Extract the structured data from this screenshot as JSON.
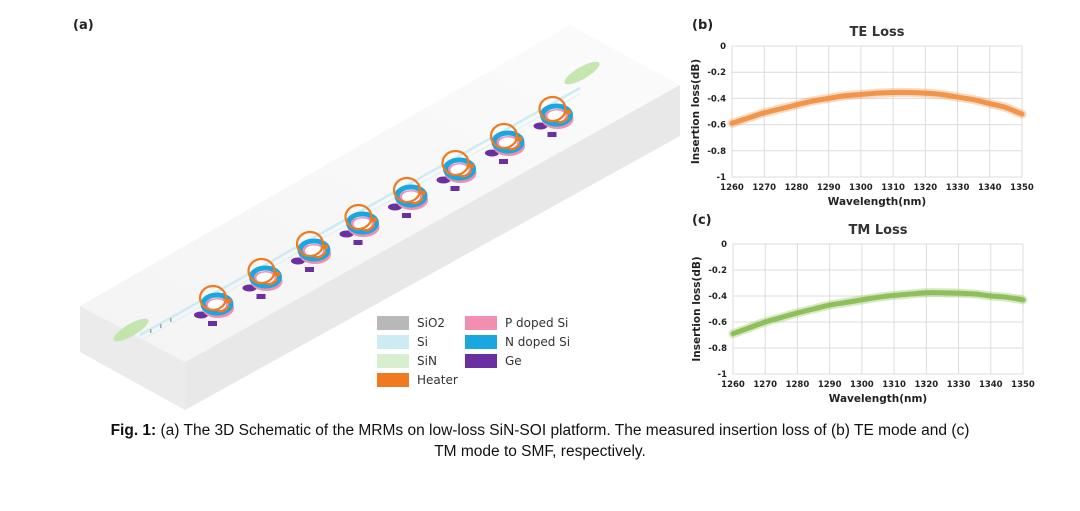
{
  "figure": {
    "panel_a_label": "(a)",
    "panel_b_label": "(b)",
    "panel_c_label": "(c)",
    "legend": [
      {
        "label": "SiO2",
        "color": "#b8b8b8"
      },
      {
        "label": "Si",
        "color": "#cdebf3"
      },
      {
        "label": "SiN",
        "color": "#d8efcf"
      },
      {
        "label": "Heater",
        "color": "#ef7a1f"
      },
      {
        "label": "P doped Si",
        "color": "#f28fb0"
      },
      {
        "label": "N doped Si",
        "color": "#1aa7e0"
      },
      {
        "label": "Ge",
        "color": "#6a2fa0"
      }
    ],
    "ring_count": 8,
    "caption_prefix": "Fig. 1:",
    "caption_line1": " (a) The 3D Schematic of the MRMs on low-loss SiN-SOI platform. The measured insertion loss of (b) TE mode and (c)",
    "caption_line2": "TM mode to SMF, respectively."
  },
  "chart_data": [
    {
      "type": "line",
      "title": "TE Loss",
      "xlabel": "Wavelength(nm)",
      "ylabel": "Insertion loss(dB)",
      "x": [
        1260,
        1265,
        1270,
        1275,
        1280,
        1285,
        1290,
        1295,
        1300,
        1305,
        1310,
        1315,
        1320,
        1325,
        1330,
        1335,
        1340,
        1345,
        1350
      ],
      "series": [
        {
          "name": "TE",
          "color": "#f0954a",
          "values": [
            -0.59,
            -0.55,
            -0.51,
            -0.48,
            -0.45,
            -0.42,
            -0.4,
            -0.38,
            -0.37,
            -0.36,
            -0.355,
            -0.355,
            -0.36,
            -0.37,
            -0.39,
            -0.41,
            -0.44,
            -0.47,
            -0.52
          ]
        }
      ],
      "xlim": [
        1260,
        1350
      ],
      "ylim": [
        -1,
        0
      ],
      "xticks": [
        "1260",
        "1270",
        "1280",
        "1290",
        "1300",
        "1310",
        "1320",
        "1330",
        "1340",
        "1350"
      ],
      "yticks": [
        "0",
        "-0.2",
        "-0.4",
        "-0.6",
        "-0.8",
        "-1"
      ],
      "grid": true
    },
    {
      "type": "line",
      "title": "TM Loss",
      "xlabel": "Wavelength(nm)",
      "ylabel": "Insertion loss(dB)",
      "x": [
        1260,
        1265,
        1270,
        1275,
        1280,
        1285,
        1290,
        1295,
        1300,
        1305,
        1310,
        1315,
        1320,
        1325,
        1330,
        1335,
        1340,
        1345,
        1350
      ],
      "series": [
        {
          "name": "TM",
          "color": "#8fbf5a",
          "values": [
            -0.69,
            -0.645,
            -0.6,
            -0.565,
            -0.53,
            -0.5,
            -0.47,
            -0.45,
            -0.43,
            -0.41,
            -0.395,
            -0.385,
            -0.375,
            -0.375,
            -0.378,
            -0.385,
            -0.4,
            -0.41,
            -0.43
          ]
        }
      ],
      "xlim": [
        1260,
        1350
      ],
      "ylim": [
        -1,
        0
      ],
      "xticks": [
        "1260",
        "1270",
        "1280",
        "1290",
        "1300",
        "1310",
        "1320",
        "1330",
        "1340",
        "1350"
      ],
      "yticks": [
        "0",
        "-0.2",
        "-0.4",
        "-0.6",
        "-0.8",
        "-1"
      ],
      "grid": true
    }
  ]
}
